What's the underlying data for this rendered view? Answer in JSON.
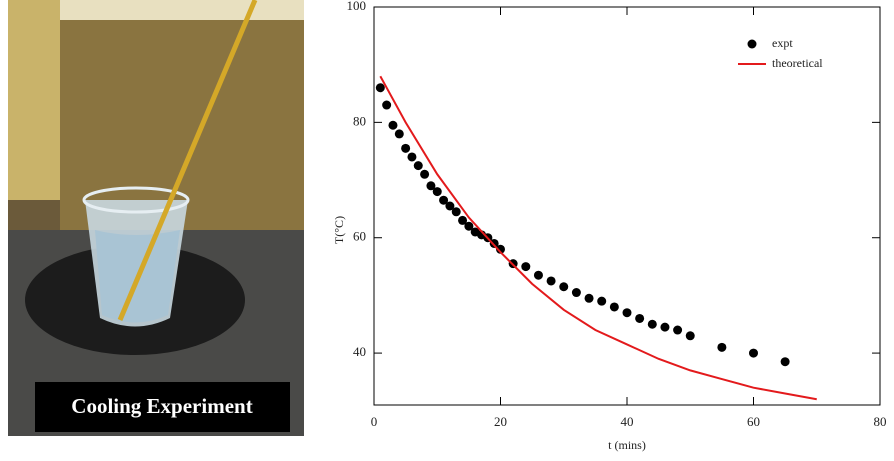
{
  "photo": {
    "caption": "Cooling Experiment"
  },
  "chart_data": {
    "type": "scatter",
    "xlabel": "t (mins)",
    "ylabel": "T(°C)",
    "xlim": [
      0,
      80
    ],
    "xticks": [
      0,
      20,
      40,
      60,
      80
    ],
    "ylim": [
      31,
      100
    ],
    "yticks": [
      40,
      60,
      80,
      100
    ],
    "legend": "top-right",
    "series": [
      {
        "name": "expt",
        "color": "#000000",
        "style": "marker",
        "x": [
          1,
          2,
          3,
          4,
          5,
          6,
          7,
          8,
          9,
          10,
          11,
          12,
          13,
          14,
          15,
          16,
          17,
          18,
          19,
          20,
          22,
          24,
          26,
          28,
          30,
          32,
          34,
          36,
          38,
          40,
          42,
          44,
          46,
          48,
          50,
          55,
          60,
          65
        ],
        "values": [
          86,
          83,
          79.5,
          78,
          75.5,
          74,
          72.5,
          71,
          69,
          68,
          66.5,
          65.5,
          64.5,
          63,
          62,
          61,
          60.5,
          60,
          59,
          58,
          55.5,
          55,
          53.5,
          52.5,
          51.5,
          50.5,
          49.5,
          49,
          48,
          47,
          46,
          45,
          44.5,
          44,
          43,
          41,
          40,
          38.5
        ]
      },
      {
        "name": "theoretical",
        "color": "#e31a1c",
        "style": "line",
        "x": [
          1,
          5,
          10,
          15,
          20,
          25,
          30,
          35,
          40,
          45,
          50,
          55,
          60,
          65,
          70
        ],
        "values": [
          88,
          80,
          71,
          63.5,
          57.5,
          52,
          47.5,
          44,
          41.5,
          39,
          37,
          35.5,
          34,
          33,
          32
        ]
      }
    ]
  }
}
